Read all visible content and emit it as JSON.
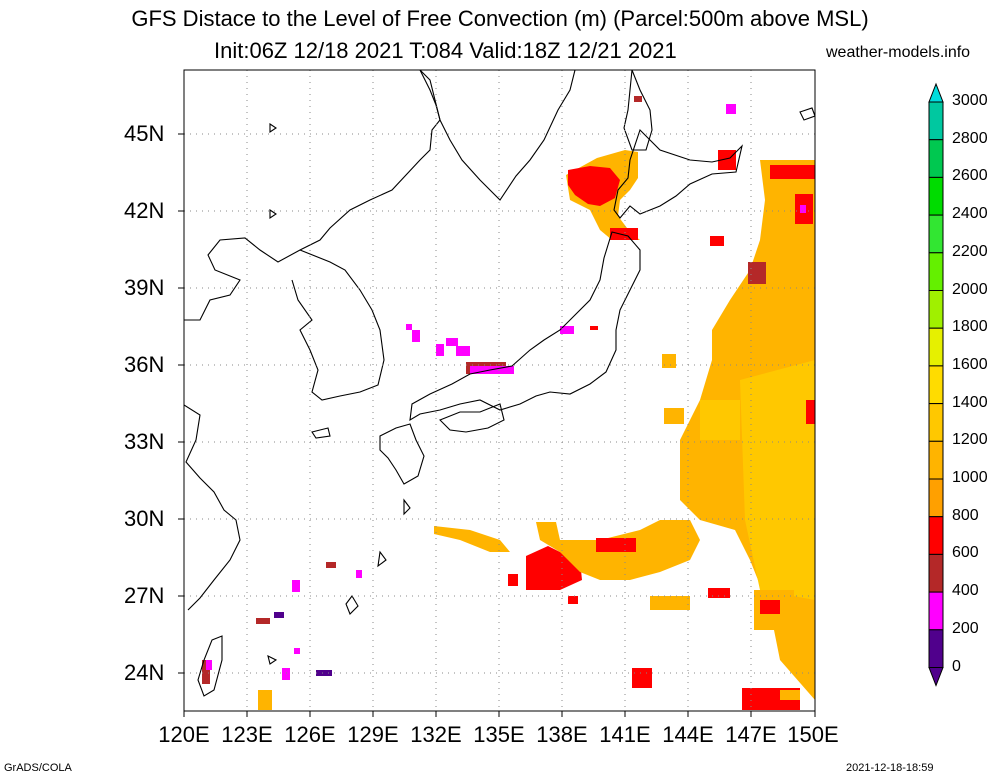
{
  "title_line1": "GFS Distace to the Level of Free Convection (m) (Parcel:500m above MSL)",
  "title_line2": "Init:06Z 12/18 2021 T:084 Valid:18Z 12/21 2021",
  "site": "weather-models.info",
  "footer_left": "GrADS/COLA",
  "footer_right": "2021-12-18-18:59",
  "lat_labels": [
    "45N",
    "42N",
    "39N",
    "36N",
    "33N",
    "30N",
    "27N",
    "24N"
  ],
  "lon_labels": [
    "120E",
    "123E",
    "126E",
    "129E",
    "132E",
    "135E",
    "138E",
    "141E",
    "144E",
    "147E",
    "150E"
  ],
  "colorbar": {
    "labels": [
      "3000",
      "2800",
      "2600",
      "2400",
      "2200",
      "2000",
      "1800",
      "1600",
      "1400",
      "1200",
      "1000",
      "800",
      "600",
      "400",
      "200",
      "0"
    ],
    "colors": [
      "#00dcdc",
      "#00c8a0",
      "#00c850",
      "#00dc00",
      "#32e632",
      "#64f000",
      "#a0f000",
      "#e6f000",
      "#ffdc00",
      "#ffc800",
      "#ffb400",
      "#ffa000",
      "#ff0000",
      "#b42828",
      "#ff00ff",
      "#50008c"
    ]
  },
  "map": {
    "lon_range": [
      120,
      150
    ],
    "lat_range": [
      22.5,
      47.5
    ]
  }
}
